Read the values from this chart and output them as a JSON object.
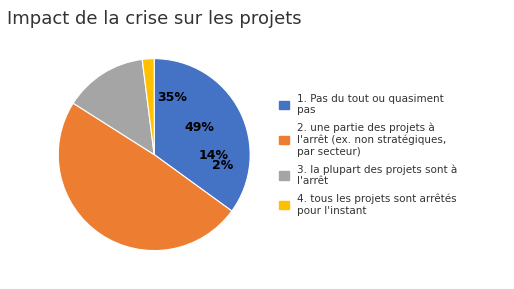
{
  "title": "Impact de la crise sur les projets",
  "slices": [
    35,
    49,
    14,
    2
  ],
  "colors": [
    "#4472C4",
    "#ED7D31",
    "#A5A5A5",
    "#FFC000"
  ],
  "pct_labels": [
    "35%",
    "49%",
    "14%",
    "2%"
  ],
  "legend_labels": [
    "1. Pas du tout ou quasiment\npas",
    "2. une partie des projets à\nl'arrêt (ex. non stratégiques,\npar secteur)",
    "3. la plupart des projets sont à\nl'arrêt",
    "4. tous les projets sont arrêtés\npour l'instant"
  ],
  "startangle": 90,
  "title_fontsize": 13,
  "label_fontsize": 9,
  "legend_fontsize": 7.5,
  "background_color": "#FFFFFF",
  "label_radii": [
    0.62,
    0.55,
    0.62,
    0.72
  ],
  "border_color": "#CCCCCC"
}
